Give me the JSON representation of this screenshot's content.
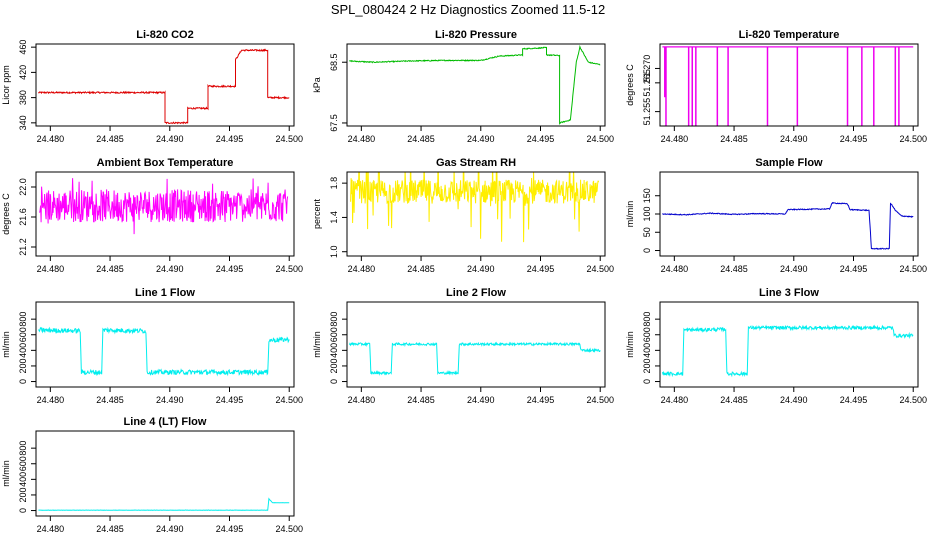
{
  "figure": {
    "title": "SPL_080424  2 Hz Diagnostics Zoomed 11.5-12",
    "colors": {
      "axis": "#000000",
      "text": "#000000",
      "background": "#ffffff"
    }
  },
  "chart_data": [
    {
      "id": "co2",
      "type": "line",
      "title": "Li-820 CO2",
      "ylabel": "Licor ppm",
      "color": "#dd0000",
      "xlim": [
        24.4788,
        24.5004
      ],
      "ylim": [
        335,
        465
      ],
      "xticks": [
        "24.480",
        "24.485",
        "24.490",
        "24.495",
        "24.500"
      ],
      "yticks": [
        "340",
        "380",
        "420",
        "460"
      ],
      "noise": 1.2,
      "series": [
        [
          24.479,
          388
        ],
        [
          24.4896,
          388
        ],
        [
          24.4896,
          340
        ],
        [
          24.4915,
          340
        ],
        [
          24.4915,
          363
        ],
        [
          24.4932,
          363
        ],
        [
          24.4932,
          398
        ],
        [
          24.4955,
          398
        ],
        [
          24.4955,
          440
        ],
        [
          24.496,
          455
        ],
        [
          24.4982,
          455
        ],
        [
          24.4982,
          380
        ],
        [
          24.5,
          380
        ]
      ]
    },
    {
      "id": "pressure",
      "type": "line",
      "title": "Li-820 Pressure",
      "ylabel": "kPa",
      "color": "#00bb00",
      "xlim": [
        24.4788,
        24.5004
      ],
      "ylim": [
        67.45,
        68.8
      ],
      "xticks": [
        "24.480",
        "24.485",
        "24.490",
        "24.495",
        "24.500"
      ],
      "yticks": [
        "67.5",
        "68.5"
      ],
      "noise": 0.008,
      "series": [
        [
          24.479,
          68.52
        ],
        [
          24.481,
          68.5
        ],
        [
          24.484,
          68.52
        ],
        [
          24.487,
          68.53
        ],
        [
          24.49,
          68.53
        ],
        [
          24.4915,
          68.6
        ],
        [
          24.4935,
          68.62
        ],
        [
          24.4935,
          68.72
        ],
        [
          24.4955,
          68.74
        ],
        [
          24.4955,
          68.62
        ],
        [
          24.4966,
          68.61
        ],
        [
          24.4966,
          67.5
        ],
        [
          24.4975,
          67.55
        ],
        [
          24.498,
          68.5
        ],
        [
          24.4983,
          68.75
        ],
        [
          24.499,
          68.5
        ],
        [
          24.5,
          68.46
        ]
      ]
    },
    {
      "id": "temperature",
      "type": "line",
      "title": "Li-820 Temperature",
      "ylabel": "degrees C",
      "color": "#ee00ee",
      "xlim": [
        24.4788,
        24.5004
      ],
      "ylim": [
        51.25,
        51.2785
      ],
      "xticks": [
        "24.480",
        "24.485",
        "24.490",
        "24.495",
        "24.500"
      ],
      "yticks": [
        "51.255",
        "51.265",
        "51.270"
      ],
      "base": 51.2775,
      "spikes": [
        [
          24.4792,
          51.26
        ],
        [
          24.4793,
          51.25
        ],
        [
          24.4812,
          51.25
        ],
        [
          24.4815,
          51.25
        ],
        [
          24.4818,
          51.25
        ],
        [
          24.4836,
          51.25
        ],
        [
          24.4845,
          51.25
        ],
        [
          24.4878,
          51.25
        ],
        [
          24.4903,
          51.25
        ],
        [
          24.4945,
          51.25
        ],
        [
          24.4957,
          51.25
        ],
        [
          24.4967,
          51.25
        ],
        [
          24.4985,
          51.25
        ],
        [
          24.4988,
          51.25
        ]
      ]
    },
    {
      "id": "ambient",
      "type": "line",
      "title": "Ambient Box Temperature",
      "ylabel": "degrees C",
      "color": "#ff00ff",
      "xlim": [
        24.4788,
        24.5004
      ],
      "ylim": [
        21.08,
        22.2
      ],
      "xticks": [
        "24.480",
        "24.485",
        "24.490",
        "24.495",
        "24.500"
      ],
      "yticks": [
        "21.2",
        "21.6",
        "22.0"
      ],
      "band": {
        "center": 21.75,
        "halfwidth": 0.22,
        "outliers": 0.4
      }
    },
    {
      "id": "rh",
      "type": "line",
      "title": "Gas Stream RH",
      "ylabel": "percent",
      "color": "#ffee00",
      "xlim": [
        24.4788,
        24.5004
      ],
      "ylim": [
        0.95,
        1.93
      ],
      "xticks": [
        "24.480",
        "24.485",
        "24.490",
        "24.495",
        "24.500"
      ],
      "yticks": [
        "1.0",
        "1.4",
        "1.8"
      ],
      "band": {
        "center": 1.7,
        "halfwidth": 0.14,
        "outliers": 0.6
      }
    },
    {
      "id": "sample_flow",
      "type": "line",
      "title": "Sample Flow",
      "ylabel": "ml/min",
      "color": "#0000cc",
      "xlim": [
        24.4788,
        24.5004
      ],
      "ylim": [
        -15,
        215
      ],
      "xticks": [
        "24.480",
        "24.485",
        "24.490",
        "24.495",
        "24.500"
      ],
      "yticks": [
        "0",
        "50",
        "100",
        "150"
      ],
      "noise": 1.2,
      "series": [
        [
          24.479,
          100
        ],
        [
          24.481,
          98
        ],
        [
          24.483,
          102
        ],
        [
          24.485,
          99
        ],
        [
          24.487,
          101
        ],
        [
          24.4893,
          100
        ],
        [
          24.4895,
          112
        ],
        [
          24.493,
          114
        ],
        [
          24.4932,
          130
        ],
        [
          24.4945,
          128
        ],
        [
          24.4947,
          112
        ],
        [
          24.4963,
          110
        ],
        [
          24.4965,
          5
        ],
        [
          24.498,
          5
        ],
        [
          24.4981,
          130
        ],
        [
          24.4985,
          110
        ],
        [
          24.499,
          95
        ],
        [
          24.5,
          92
        ]
      ]
    },
    {
      "id": "line1",
      "type": "line",
      "title": "Line 1 Flow",
      "ylabel": "ml/min",
      "color": "#00eeee",
      "xlim": [
        24.4788,
        24.5004
      ],
      "ylim": [
        -70,
        1020
      ],
      "xticks": [
        "24.480",
        "24.485",
        "24.490",
        "24.495",
        "24.500"
      ],
      "yticks": [
        "0",
        "200",
        "400",
        "600",
        "800"
      ],
      "noise": 30,
      "series": [
        [
          24.479,
          660
        ],
        [
          24.4825,
          650
        ],
        [
          24.4826,
          120
        ],
        [
          24.4843,
          120
        ],
        [
          24.4844,
          660
        ],
        [
          24.488,
          650
        ],
        [
          24.4881,
          120
        ],
        [
          24.4982,
          120
        ],
        [
          24.4983,
          530
        ],
        [
          24.5,
          540
        ]
      ]
    },
    {
      "id": "line2",
      "type": "line",
      "title": "Line 2 Flow",
      "ylabel": "ml/min",
      "color": "#00eeee",
      "xlim": [
        24.4788,
        24.5004
      ],
      "ylim": [
        -70,
        1020
      ],
      "xticks": [
        "24.480",
        "24.485",
        "24.490",
        "24.495",
        "24.500"
      ],
      "yticks": [
        "0",
        "200",
        "400",
        "600",
        "800"
      ],
      "noise": 15,
      "series": [
        [
          24.479,
          480
        ],
        [
          24.4807,
          480
        ],
        [
          24.4808,
          110
        ],
        [
          24.4825,
          110
        ],
        [
          24.4826,
          480
        ],
        [
          24.4863,
          480
        ],
        [
          24.4864,
          110
        ],
        [
          24.4881,
          110
        ],
        [
          24.4882,
          480
        ],
        [
          24.4983,
          480
        ],
        [
          24.4984,
          400
        ],
        [
          24.5,
          400
        ]
      ]
    },
    {
      "id": "line3",
      "type": "line",
      "title": "Line 3 Flow",
      "ylabel": "ml/min",
      "color": "#00eeee",
      "xlim": [
        24.4788,
        24.5004
      ],
      "ylim": [
        -70,
        1020
      ],
      "xticks": [
        "24.480",
        "24.485",
        "24.490",
        "24.495",
        "24.500"
      ],
      "yticks": [
        "0",
        "200",
        "400",
        "600",
        "800"
      ],
      "noise": 22,
      "series": [
        [
          24.479,
          100
        ],
        [
          24.4807,
          100
        ],
        [
          24.4808,
          660
        ],
        [
          24.4843,
          670
        ],
        [
          24.4844,
          100
        ],
        [
          24.4861,
          100
        ],
        [
          24.4862,
          690
        ],
        [
          24.4983,
          690
        ],
        [
          24.4984,
          590
        ],
        [
          24.5,
          590
        ]
      ]
    },
    {
      "id": "line4",
      "type": "line",
      "title": "Line 4 (LT) Flow",
      "ylabel": "ml/min",
      "color": "#00eeee",
      "xlim": [
        24.4788,
        24.5004
      ],
      "ylim": [
        -70,
        1020
      ],
      "xticks": [
        "24.480",
        "24.485",
        "24.490",
        "24.495",
        "24.500"
      ],
      "yticks": [
        "0",
        "200",
        "400",
        "600",
        "800"
      ],
      "noise": 1.5,
      "series": [
        [
          24.479,
          5
        ],
        [
          24.4982,
          5
        ],
        [
          24.4983,
          150
        ],
        [
          24.4986,
          100
        ],
        [
          24.5,
          100
        ]
      ]
    }
  ]
}
